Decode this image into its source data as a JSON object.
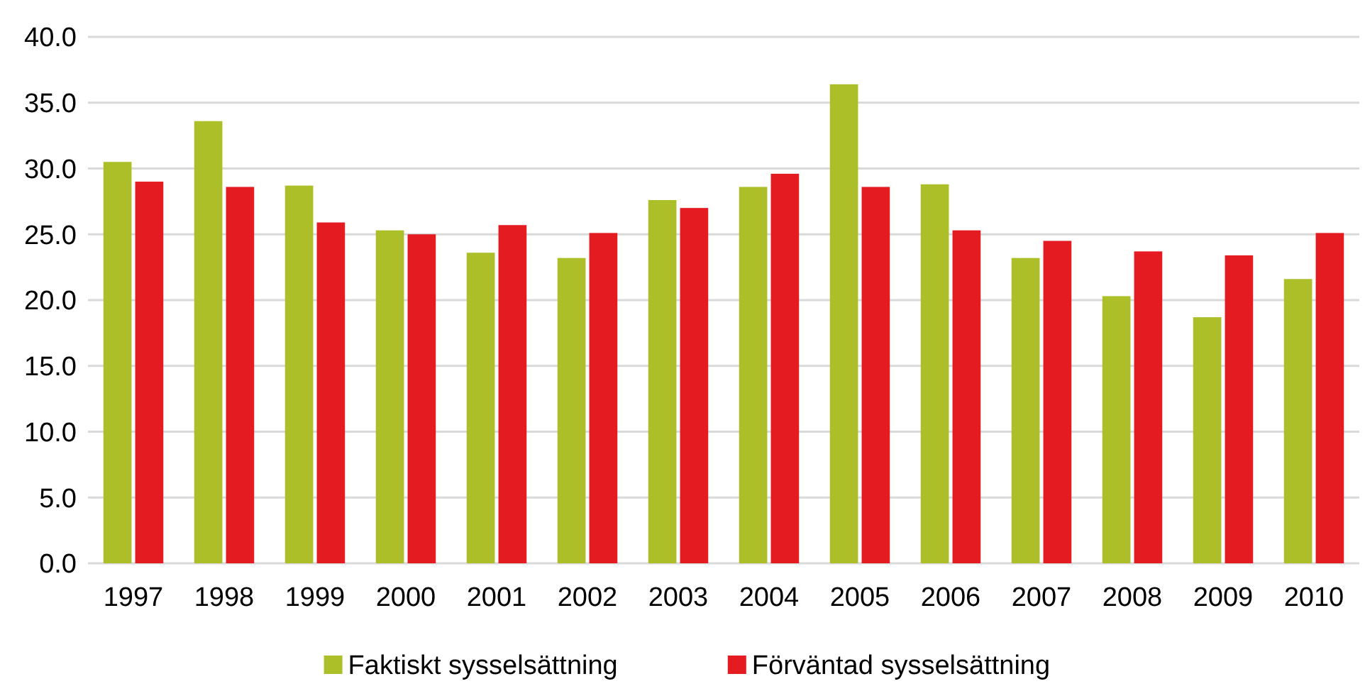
{
  "chart_data": {
    "type": "bar",
    "categories": [
      "1997",
      "1998",
      "1999",
      "2000",
      "2001",
      "2002",
      "2003",
      "2004",
      "2005",
      "2006",
      "2007",
      "2008",
      "2009",
      "2010"
    ],
    "series": [
      {
        "name": "Faktiskt sysselsättning",
        "color": "#acbf28",
        "values": [
          30.5,
          33.6,
          28.7,
          25.3,
          23.6,
          23.2,
          27.6,
          28.6,
          36.4,
          28.8,
          23.2,
          20.3,
          18.7,
          21.6
        ]
      },
      {
        "name": "Förväntad sysselsättning",
        "color": "#e41b21",
        "values": [
          29.0,
          28.6,
          25.9,
          25.0,
          25.7,
          25.1,
          27.0,
          29.6,
          28.6,
          25.3,
          24.5,
          23.7,
          23.4,
          25.1
        ]
      }
    ],
    "ylim": [
      0,
      40
    ],
    "yticks": [
      {
        "value": 0,
        "label": "0.0"
      },
      {
        "value": 5,
        "label": "5.0"
      },
      {
        "value": 10,
        "label": "10.0"
      },
      {
        "value": 15,
        "label": "15.0"
      },
      {
        "value": 20,
        "label": "20.0"
      },
      {
        "value": 25,
        "label": "25.0"
      },
      {
        "value": 30,
        "label": "30.0"
      },
      {
        "value": 35,
        "label": "35.0"
      },
      {
        "value": 40,
        "label": "40.0"
      }
    ],
    "grid": "y",
    "legend": "bottom"
  }
}
